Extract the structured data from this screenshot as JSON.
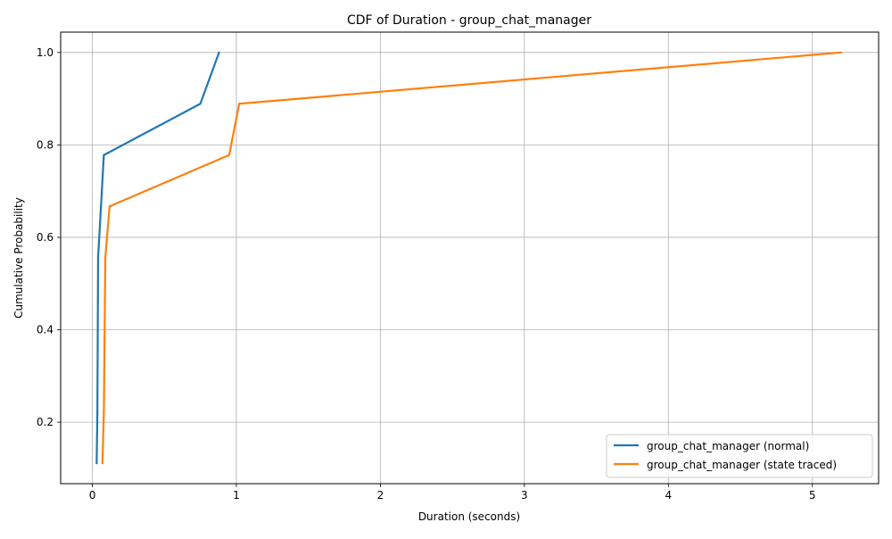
{
  "chart_data": {
    "type": "line",
    "title": "CDF of Duration - group_chat_manager",
    "xlabel": "Duration (seconds)",
    "ylabel": "Cumulative Probability",
    "xlim": [
      -0.22,
      5.46
    ],
    "ylim": [
      0.067,
      1.044
    ],
    "xticks": [
      0,
      1,
      2,
      3,
      4,
      5
    ],
    "xtick_labels": [
      "0",
      "1",
      "2",
      "3",
      "4",
      "5"
    ],
    "yticks": [
      0.2,
      0.4,
      0.6,
      0.8,
      1.0
    ],
    "ytick_labels": [
      "0.2",
      "0.4",
      "0.6",
      "0.8",
      "1.0"
    ],
    "grid": true,
    "legend_position": "lower-right",
    "series": [
      {
        "name": "group_chat_manager (normal)",
        "color": "#1f77b4",
        "x": [
          0.03,
          0.035,
          0.04,
          0.06,
          0.08,
          0.75,
          0.88
        ],
        "y": [
          0.111,
          0.222,
          0.556,
          0.667,
          0.778,
          0.889,
          1.0
        ]
      },
      {
        "name": "group_chat_manager (state traced)",
        "color": "#ff7f0e",
        "x": [
          0.07,
          0.08,
          0.09,
          0.12,
          0.95,
          1.02,
          5.2
        ],
        "y": [
          0.111,
          0.222,
          0.556,
          0.667,
          0.778,
          0.889,
          1.0
        ]
      }
    ]
  }
}
